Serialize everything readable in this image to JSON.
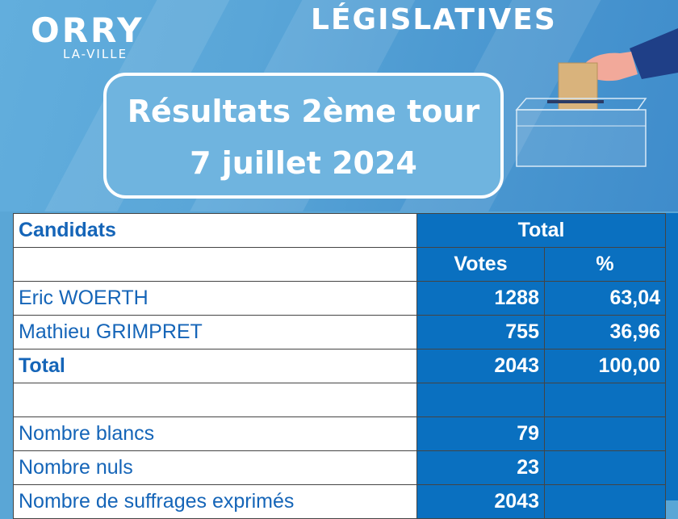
{
  "logo": {
    "name": "ORRY",
    "sub": "LA-VILLE"
  },
  "banner": {
    "title": "LÉGISLATIVES"
  },
  "result_box": {
    "line1": "Résultats 2ème tour",
    "line2": "7 juillet 2024"
  },
  "table": {
    "header": {
      "candidats": "Candidats",
      "total": "Total",
      "votes": "Votes",
      "percent": "%"
    },
    "candidates": [
      {
        "name": "Eric WOERTH",
        "votes": "1288",
        "percent": "63,04"
      },
      {
        "name": "Mathieu GRIMPRET",
        "votes": "755",
        "percent": "36,96"
      }
    ],
    "total": {
      "label": "Total",
      "votes": "2043",
      "percent": "100,00"
    },
    "stats": [
      {
        "label": "Nombre blancs",
        "value": "79"
      },
      {
        "label": "Nombre nuls",
        "value": "23"
      },
      {
        "label": "Nombre de suffrages exprimés",
        "value": "2043"
      }
    ]
  },
  "colors": {
    "banner_blue": "#5aa6d8",
    "table_blue": "#0a70c0",
    "label_blue": "#1565b8"
  }
}
